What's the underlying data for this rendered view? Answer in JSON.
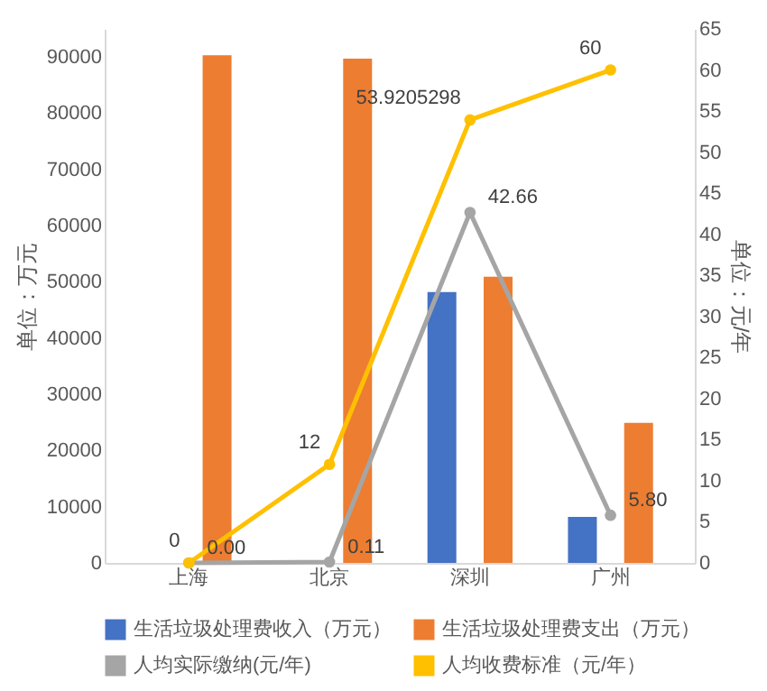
{
  "chart_data": {
    "type": "bar",
    "categories": [
      "上海",
      "北京",
      "深圳",
      "广州"
    ],
    "ylabel": "单位：万元",
    "y2label": "单位：元/年",
    "ylim": [
      0,
      95000
    ],
    "yticks": [
      0,
      10000,
      20000,
      30000,
      40000,
      50000,
      60000,
      70000,
      80000,
      90000
    ],
    "y2lim": [
      0,
      65
    ],
    "y2ticks": [
      0,
      5,
      10,
      15,
      20,
      25,
      30,
      35,
      40,
      45,
      50,
      55,
      60,
      65
    ],
    "grid": false,
    "legend": "bottom",
    "marker": "circle",
    "series": [
      {
        "name": "生活垃圾处理费收入（万元）",
        "color": "#4472c4",
        "values": [
          0,
          0,
          48200,
          8200
        ]
      },
      {
        "name": "生活垃圾处理费支出（万元）",
        "color": "#ed7d31",
        "values": [
          90300,
          89700,
          50900,
          24900
        ]
      },
      {
        "name": "人均实际缴纳(元/年)",
        "type": "line",
        "axis": "y2",
        "color": "#a5a5a5",
        "values": [
          0,
          0.11,
          42.66,
          5.8
        ],
        "value_labels": [
          "0.00",
          "0.11",
          "42.66",
          "5.80"
        ]
      },
      {
        "name": "人均收费标准（元/年）",
        "type": "line",
        "axis": "y2",
        "color": "#ffc000",
        "values": [
          0,
          12,
          53.9205298,
          60
        ],
        "value_labels": [
          "0",
          "12",
          "53.9205298",
          "60"
        ]
      }
    ]
  }
}
